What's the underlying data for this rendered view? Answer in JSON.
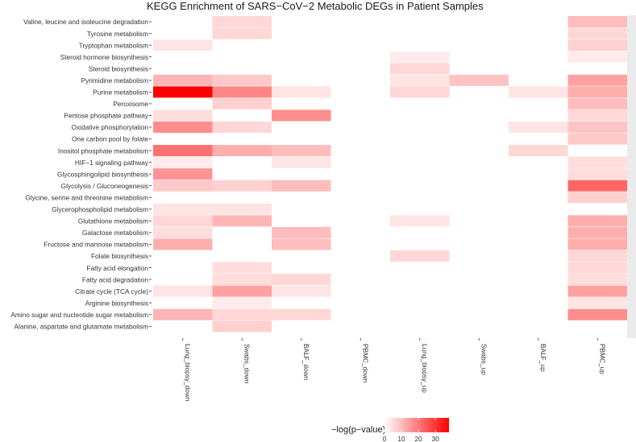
{
  "chart_data": {
    "type": "heatmap",
    "title": "KEGG Enrichment of SARS−CoV−2 Metabolic DEGs in Patient Samples",
    "xlabel": "",
    "ylabel": "",
    "columns": [
      "Lung_biopsy_down",
      "Swabs_down",
      "BALF_down",
      "PBMC_down",
      "Lung_biopsy_up",
      "Swabs_up",
      "BALF_up",
      "PBMC_up"
    ],
    "rows": [
      "Valine, leucine and isoleucine degradation",
      "Tyrosine metabolism",
      "Tryptophan metabolism",
      "Steroid hormone biosynthesis",
      "Steroid biosynthesis",
      "Pyrimidine metabolism",
      "Purine metabolism",
      "Peroxisome",
      "Pentose phosphate pathway",
      "Oxidative phosphorylation",
      "One carbon pool by folate",
      "Inositol phosphate metabolism",
      "HIF−1 signaling pathway",
      "Glycosphingolipid biosynthesis",
      "Glycolysis / Gluconeogenesis",
      "Glycine, serine and threonine metabolism",
      "Glycerophospholipid metabolism",
      "Glutathione metabolism",
      "Galactose metabolism",
      "Fructose and mannose metabolism",
      "Folate biosynthesis",
      "Fatty acid elongation",
      "Fatty acid degradation",
      "Citrate cycle (TCA cycle)",
      "Arginine biosynthesis",
      "Amino sugar and nucleotide sugar metabolism",
      "Alanine, aspartate and glutamate metabolism"
    ],
    "values": [
      [
        null,
        6,
        null,
        null,
        null,
        null,
        null,
        10
      ],
      [
        null,
        6,
        null,
        null,
        null,
        null,
        null,
        6
      ],
      [
        4,
        null,
        null,
        null,
        null,
        null,
        null,
        7
      ],
      [
        null,
        null,
        null,
        null,
        3,
        null,
        null,
        3
      ],
      [
        null,
        null,
        null,
        null,
        6,
        null,
        null,
        null
      ],
      [
        11,
        8,
        null,
        null,
        4,
        9,
        null,
        14
      ],
      [
        38,
        18,
        4,
        null,
        6,
        null,
        4,
        12
      ],
      [
        null,
        7,
        null,
        null,
        null,
        null,
        null,
        10
      ],
      [
        5,
        null,
        17,
        null,
        null,
        null,
        null,
        6
      ],
      [
        17,
        6,
        null,
        null,
        null,
        null,
        4,
        9
      ],
      [
        null,
        null,
        null,
        null,
        null,
        null,
        null,
        8
      ],
      [
        21,
        12,
        10,
        null,
        null,
        null,
        6,
        null
      ],
      [
        3,
        null,
        4,
        null,
        null,
        null,
        null,
        5
      ],
      [
        16,
        null,
        null,
        null,
        null,
        null,
        null,
        5
      ],
      [
        8,
        7,
        10,
        null,
        null,
        null,
        null,
        23
      ],
      [
        null,
        null,
        null,
        null,
        null,
        null,
        null,
        7
      ],
      [
        4,
        4,
        null,
        null,
        null,
        null,
        null,
        null
      ],
      [
        6,
        11,
        null,
        null,
        4,
        null,
        null,
        12
      ],
      [
        5,
        null,
        10,
        null,
        null,
        null,
        null,
        12
      ],
      [
        12,
        null,
        10,
        null,
        null,
        null,
        null,
        12
      ],
      [
        null,
        null,
        null,
        null,
        6,
        null,
        null,
        6
      ],
      [
        null,
        5,
        null,
        null,
        null,
        null,
        null,
        6
      ],
      [
        null,
        5,
        6,
        null,
        null,
        null,
        null,
        5
      ],
      [
        4,
        14,
        4,
        null,
        null,
        null,
        null,
        14
      ],
      [
        null,
        3,
        null,
        null,
        null,
        null,
        null,
        4
      ],
      [
        11,
        6,
        6,
        null,
        null,
        null,
        null,
        17
      ],
      [
        null,
        7,
        null,
        null,
        null,
        null,
        null,
        null
      ]
    ],
    "colorbar": {
      "label": "−log(p−value)",
      "min": 0,
      "max": 38,
      "ticks": [
        0,
        10,
        20,
        30
      ],
      "low_color": "#ffffff",
      "high_color": "#ff0000"
    },
    "background_color": "#ffffff",
    "strip_color": "#ebebeb",
    "legend_position": "bottom"
  }
}
